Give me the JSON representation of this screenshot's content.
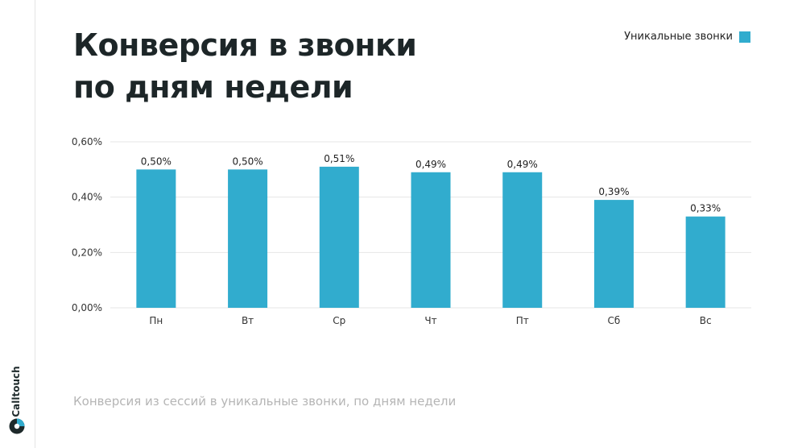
{
  "title_line1": "Конверсия в звонки",
  "title_line2": "по дням недели",
  "legend_label": "Уникальные звонки",
  "caption": "Конверсия из сессий в уникальные звонки, по дням недели",
  "brand": "Calltouch",
  "colors": {
    "bar": "#31acce",
    "grid": "#e6e6e6",
    "title": "#1d2628",
    "caption": "#b5b5b5"
  },
  "chart_data": {
    "type": "bar",
    "title": "Конверсия в звонки по дням недели",
    "categories": [
      "Пн",
      "Вт",
      "Ср",
      "Чт",
      "Пт",
      "Сб",
      "Вс"
    ],
    "series": [
      {
        "name": "Уникальные звонки",
        "values": [
          0.5,
          0.5,
          0.51,
          0.49,
          0.49,
          0.39,
          0.33
        ]
      }
    ],
    "data_labels": [
      "0,50%",
      "0,50%",
      "0,51%",
      "0,49%",
      "0,49%",
      "0,39%",
      "0,33%"
    ],
    "yticks": [
      "0,00%",
      "0,20%",
      "0,40%",
      "0,60%"
    ],
    "ytick_values": [
      0,
      0.2,
      0.4,
      0.6
    ],
    "ylim": [
      0,
      0.6
    ],
    "xlabel": "",
    "ylabel": "",
    "grid": true,
    "legend_position": "top-right"
  }
}
